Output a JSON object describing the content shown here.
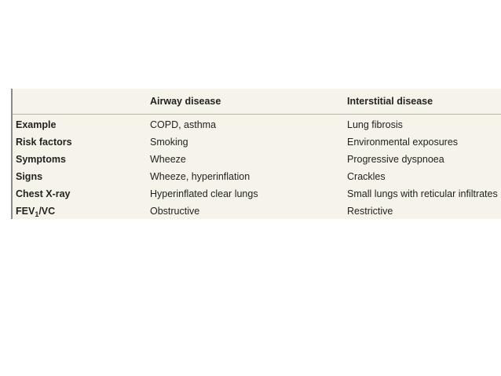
{
  "table": {
    "headers": [
      "",
      "Airway disease",
      "Interstitial disease"
    ],
    "rows": [
      {
        "label": "Example",
        "airway": "COPD, asthma",
        "interstitial": "Lung fibrosis"
      },
      {
        "label": "Risk factors",
        "airway": "Smoking",
        "interstitial": "Environmental exposures"
      },
      {
        "label": "Symptoms",
        "airway": "Wheeze",
        "interstitial": "Progressive dyspnoea"
      },
      {
        "label": "Signs",
        "airway": "Wheeze, hyperinflation",
        "interstitial": "Crackles"
      },
      {
        "label": "Chest X-ray",
        "airway": "Hyperinflated clear lungs",
        "interstitial": "Small lungs with reticular infiltrates"
      },
      {
        "label_main": "FEV",
        "label_sub": "1",
        "label_tail": "/VC",
        "airway": "Obstructive",
        "interstitial": "Restrictive"
      }
    ]
  },
  "colors": {
    "table_background": "#f6f4ea",
    "rule": "#8a8a8a",
    "text": "#222222"
  }
}
